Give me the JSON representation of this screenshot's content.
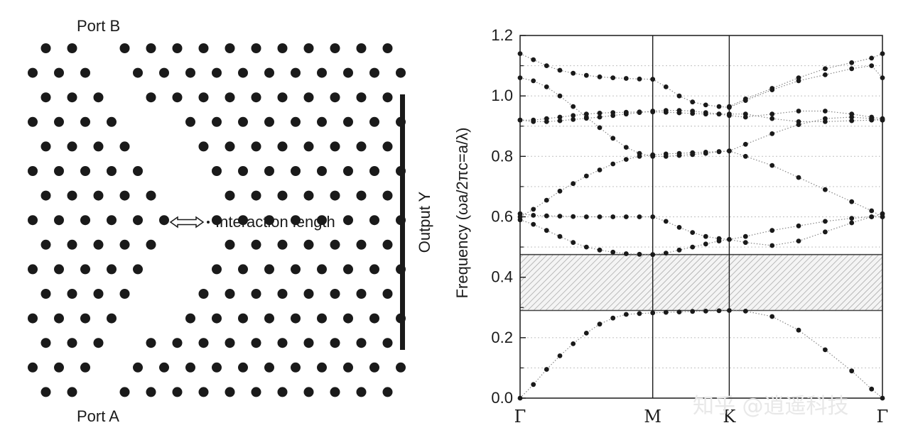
{
  "colors": {
    "ink": "#1a1a1a",
    "grid": "#c8c8c8",
    "band": "#888888",
    "gap_fill": "#f4f4f4"
  },
  "crystal": {
    "port_b": "Port B",
    "port_a": "Port A",
    "interaction": "Interaction length",
    "output": "Output Y",
    "columns": 14,
    "rows": 15,
    "vacancies": [
      [
        0,
        2
      ],
      [
        1,
        3
      ],
      [
        2,
        3
      ],
      [
        3,
        4
      ],
      [
        4,
        4
      ],
      [
        5,
        5
      ],
      [
        6,
        5
      ],
      [
        7,
        6
      ],
      [
        8,
        5
      ],
      [
        9,
        5
      ],
      [
        10,
        4
      ],
      [
        11,
        4
      ],
      [
        12,
        3
      ],
      [
        13,
        3
      ],
      [
        14,
        2
      ],
      [
        3,
        5
      ],
      [
        4,
        5
      ],
      [
        5,
        6
      ],
      [
        6,
        6
      ],
      [
        8,
        6
      ],
      [
        9,
        6
      ],
      [
        10,
        5
      ],
      [
        11,
        5
      ]
    ]
  },
  "chart_data": {
    "type": "scatter",
    "title": "",
    "xlabel": "",
    "ylabel": "Frequency (ωa/2πc=a/λ)",
    "ylim": [
      0,
      1.2
    ],
    "yticks": [
      "0.0",
      "0.2",
      "0.4",
      "0.6",
      "0.8",
      "1.0",
      "1.2"
    ],
    "xticks": [
      "Γ",
      "M",
      "K",
      "Γ"
    ],
    "xpos": [
      0,
      1,
      1.577,
      2.732
    ],
    "gap": [
      0.29,
      0.475
    ],
    "grid": "dotted horizontal",
    "watermark": "知乎 @逍遥科技",
    "bands": [
      {
        "x": [
          0,
          0.1,
          0.2,
          0.3,
          0.4,
          0.5,
          0.6,
          0.7,
          0.8,
          0.9,
          1.0,
          1.1,
          1.2,
          1.3,
          1.4,
          1.5,
          1.577,
          1.7,
          1.9,
          2.1,
          2.3,
          2.5,
          2.65,
          2.732
        ],
        "y": [
          0,
          0.045,
          0.095,
          0.14,
          0.18,
          0.215,
          0.245,
          0.265,
          0.277,
          0.28,
          0.282,
          0.284,
          0.285,
          0.287,
          0.288,
          0.289,
          0.29,
          0.288,
          0.27,
          0.225,
          0.16,
          0.09,
          0.03,
          0.0
        ]
      },
      {
        "x": [
          0,
          0.1,
          0.2,
          0.3,
          0.4,
          0.5,
          0.6,
          0.7,
          0.8,
          0.9,
          1.0,
          1.1,
          1.2,
          1.3,
          1.4,
          1.5,
          1.577,
          1.7,
          1.9,
          2.1,
          2.3,
          2.5,
          2.65,
          2.732
        ],
        "y": [
          0.59,
          0.575,
          0.555,
          0.535,
          0.515,
          0.5,
          0.49,
          0.483,
          0.478,
          0.476,
          0.475,
          0.48,
          0.49,
          0.5,
          0.51,
          0.52,
          0.525,
          0.515,
          0.505,
          0.52,
          0.55,
          0.58,
          0.6,
          0.61
        ]
      },
      {
        "x": [
          0,
          0.1,
          0.2,
          0.3,
          0.4,
          0.5,
          0.6,
          0.7,
          0.8,
          0.9,
          1.0,
          1.1,
          1.2,
          1.3,
          1.4,
          1.5,
          1.577,
          1.7,
          1.9,
          2.1,
          2.3,
          2.5,
          2.65,
          2.732
        ],
        "y": [
          0.61,
          0.605,
          0.603,
          0.602,
          0.601,
          0.6,
          0.6,
          0.6,
          0.6,
          0.6,
          0.6,
          0.585,
          0.565,
          0.548,
          0.535,
          0.528,
          0.525,
          0.535,
          0.555,
          0.57,
          0.585,
          0.595,
          0.6,
          0.6
        ]
      },
      {
        "x": [
          0,
          0.1,
          0.2,
          0.3,
          0.4,
          0.5,
          0.6,
          0.7,
          0.8,
          0.9,
          1.0,
          1.1,
          1.2,
          1.3,
          1.4,
          1.5,
          1.577,
          1.7,
          1.9,
          2.1,
          2.3,
          2.5,
          2.65,
          2.732
        ],
        "y": [
          0.6,
          0.625,
          0.655,
          0.685,
          0.71,
          0.735,
          0.755,
          0.775,
          0.79,
          0.8,
          0.805,
          0.808,
          0.81,
          0.812,
          0.814,
          0.816,
          0.818,
          0.8,
          0.77,
          0.73,
          0.69,
          0.65,
          0.62,
          0.6
        ]
      },
      {
        "x": [
          0,
          0.1,
          0.2,
          0.3,
          0.4,
          0.5,
          0.6,
          0.7,
          0.8,
          0.9,
          1.0,
          1.1,
          1.2,
          1.3,
          1.4,
          1.5,
          1.577,
          1.7,
          1.9,
          2.1,
          2.3,
          2.5,
          2.65,
          2.732
        ],
        "y": [
          1.06,
          1.05,
          1.03,
          1.0,
          0.965,
          0.93,
          0.895,
          0.86,
          0.83,
          0.81,
          0.8,
          0.8,
          0.803,
          0.806,
          0.81,
          0.815,
          0.818,
          0.84,
          0.875,
          0.905,
          0.925,
          0.93,
          0.925,
          0.92
        ]
      },
      {
        "x": [
          0,
          0.1,
          0.2,
          0.3,
          0.4,
          0.5,
          0.6,
          0.7,
          0.8,
          0.9,
          1.0,
          1.1,
          1.2,
          1.3,
          1.4,
          1.5,
          1.577,
          1.7,
          1.9,
          2.1,
          2.3,
          2.5,
          2.65,
          2.732
        ],
        "y": [
          0.92,
          0.92,
          0.925,
          0.93,
          0.935,
          0.94,
          0.943,
          0.945,
          0.946,
          0.947,
          0.947,
          0.946,
          0.944,
          0.942,
          0.94,
          0.94,
          0.94,
          0.94,
          0.925,
          0.915,
          0.915,
          0.918,
          0.92,
          0.92
        ]
      },
      {
        "x": [
          0,
          0.1,
          0.2,
          0.3,
          0.4,
          0.5,
          0.6,
          0.7,
          0.8,
          0.9,
          1.0,
          1.1,
          1.2,
          1.3,
          1.4,
          1.5,
          1.577,
          1.7,
          1.9,
          2.1,
          2.3,
          2.5,
          2.65,
          2.732
        ],
        "y": [
          0.92,
          0.915,
          0.915,
          0.918,
          0.922,
          0.926,
          0.93,
          0.935,
          0.94,
          0.945,
          0.95,
          0.952,
          0.952,
          0.95,
          0.945,
          0.94,
          0.935,
          0.93,
          0.94,
          0.95,
          0.95,
          0.94,
          0.93,
          0.925
        ]
      },
      {
        "x": [
          0,
          0.1,
          0.2,
          0.3,
          0.4,
          0.5,
          0.6,
          0.7,
          0.8,
          0.9,
          1.0,
          1.1,
          1.2,
          1.3,
          1.4,
          1.5,
          1.577,
          1.7,
          1.9,
          2.1,
          2.3,
          2.5,
          2.65,
          2.732
        ],
        "y": [
          1.14,
          1.12,
          1.1,
          1.085,
          1.075,
          1.068,
          1.063,
          1.06,
          1.058,
          1.056,
          1.055,
          1.03,
          1.0,
          0.98,
          0.97,
          0.965,
          0.962,
          0.985,
          1.02,
          1.05,
          1.07,
          1.09,
          1.1,
          1.06
        ]
      },
      {
        "x": [
          1.577,
          1.7,
          1.9,
          2.1,
          2.3,
          2.5,
          2.65,
          2.732
        ],
        "y": [
          0.965,
          0.99,
          1.025,
          1.06,
          1.09,
          1.11,
          1.125,
          1.14
        ]
      }
    ]
  }
}
